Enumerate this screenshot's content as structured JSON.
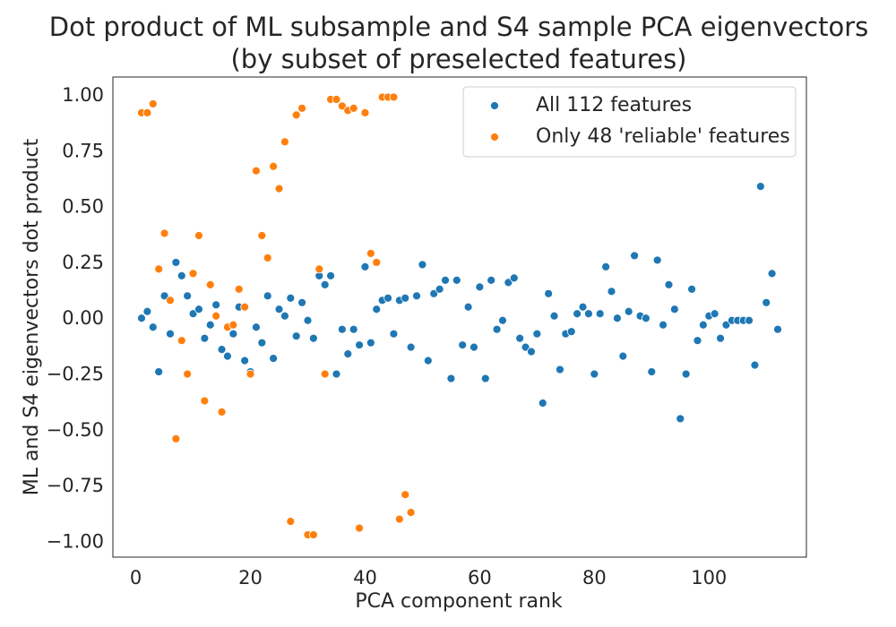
{
  "chart_data": {
    "type": "scatter",
    "title": "Dot product of ML subsample and S4 sample PCA eigenvectors",
    "subtitle": "(by subset of preselected features)",
    "xlabel": "PCA component rank",
    "ylabel": "ML and S4 eigenvectors dot product",
    "xlim": [
      -4,
      117
    ],
    "ylim": [
      -1.07,
      1.08
    ],
    "xticks": [
      0,
      20,
      40,
      60,
      80,
      100
    ],
    "xtick_labels": [
      "0",
      "20",
      "40",
      "60",
      "80",
      "100"
    ],
    "yticks": [
      1.0,
      0.75,
      0.5,
      0.25,
      0.0,
      -0.25,
      -0.5,
      -0.75,
      -1.0
    ],
    "ytick_labels": [
      "1.00",
      "0.75",
      "0.50",
      "0.25",
      "0.00",
      "−0.25",
      "−0.50",
      "−0.75",
      "−1.00"
    ],
    "grid": false,
    "legend_position": "top-right",
    "series": [
      {
        "name": "All 112 features",
        "color": "#1f77b4",
        "x": [
          1,
          2,
          3,
          4,
          5,
          6,
          7,
          8,
          9,
          10,
          11,
          12,
          13,
          14,
          15,
          16,
          17,
          18,
          19,
          20,
          21,
          22,
          23,
          24,
          25,
          26,
          27,
          28,
          29,
          30,
          31,
          32,
          33,
          34,
          35,
          36,
          37,
          38,
          39,
          40,
          41,
          42,
          43,
          44,
          45,
          46,
          47,
          48,
          49,
          50,
          51,
          52,
          53,
          54,
          55,
          56,
          57,
          58,
          59,
          60,
          61,
          62,
          63,
          64,
          65,
          66,
          67,
          68,
          69,
          70,
          71,
          72,
          73,
          74,
          75,
          76,
          77,
          78,
          79,
          80,
          81,
          82,
          83,
          84,
          85,
          86,
          87,
          88,
          89,
          90,
          91,
          92,
          93,
          94,
          95,
          96,
          97,
          98,
          99,
          100,
          101,
          102,
          103,
          104,
          105,
          106,
          107,
          108,
          109,
          110,
          111,
          112
        ],
        "y": [
          0.0,
          0.03,
          -0.04,
          -0.24,
          0.1,
          -0.07,
          0.25,
          0.19,
          0.1,
          0.02,
          0.04,
          -0.09,
          -0.03,
          0.06,
          -0.14,
          -0.17,
          -0.07,
          0.05,
          -0.19,
          -0.24,
          -0.04,
          -0.11,
          0.1,
          -0.18,
          0.04,
          0.01,
          0.09,
          -0.08,
          0.07,
          -0.01,
          -0.09,
          0.19,
          0.15,
          0.19,
          -0.25,
          -0.05,
          -0.16,
          -0.05,
          -0.12,
          0.23,
          -0.11,
          0.04,
          0.08,
          0.09,
          -0.07,
          0.08,
          0.09,
          -0.13,
          0.1,
          0.24,
          -0.19,
          0.11,
          0.13,
          0.17,
          -0.27,
          0.17,
          -0.12,
          0.05,
          -0.13,
          0.14,
          -0.27,
          0.17,
          -0.05,
          -0.01,
          0.16,
          0.18,
          -0.09,
          -0.13,
          -0.15,
          -0.07,
          -0.38,
          0.11,
          0.01,
          -0.23,
          -0.07,
          -0.06,
          0.02,
          0.05,
          0.02,
          -0.25,
          0.02,
          0.23,
          0.12,
          0.0,
          -0.17,
          0.03,
          0.28,
          0.01,
          0.0,
          -0.24,
          0.26,
          -0.03,
          0.15,
          0.04,
          -0.45,
          -0.25,
          0.13,
          -0.1,
          -0.03,
          0.01,
          0.02,
          -0.09,
          -0.03,
          -0.01,
          -0.01,
          -0.01,
          -0.01,
          -0.21,
          0.59,
          0.07,
          0.2,
          -0.05
        ]
      },
      {
        "name": "Only 48 'reliable' features",
        "color": "#ff7f0e",
        "x": [
          1,
          2,
          3,
          4,
          5,
          6,
          7,
          8,
          9,
          10,
          11,
          12,
          13,
          14,
          15,
          16,
          17,
          18,
          19,
          20,
          21,
          22,
          23,
          24,
          25,
          26,
          27,
          28,
          29,
          30,
          31,
          32,
          33,
          34,
          35,
          36,
          37,
          38,
          39,
          40,
          41,
          42,
          43,
          44,
          45,
          46,
          47,
          48
        ],
        "y": [
          0.92,
          0.92,
          0.96,
          0.22,
          0.38,
          0.08,
          -0.54,
          -0.1,
          -0.25,
          0.2,
          0.37,
          -0.37,
          0.15,
          0.01,
          -0.42,
          -0.04,
          -0.03,
          0.13,
          0.05,
          -0.25,
          0.66,
          0.37,
          0.27,
          0.68,
          0.58,
          0.79,
          -0.91,
          0.91,
          0.94,
          -0.97,
          -0.97,
          0.22,
          -0.25,
          0.98,
          0.98,
          0.95,
          0.93,
          0.94,
          -0.94,
          0.92,
          0.29,
          0.25,
          0.99,
          0.99,
          0.99,
          -0.9,
          -0.79,
          -0.87
        ]
      }
    ]
  }
}
